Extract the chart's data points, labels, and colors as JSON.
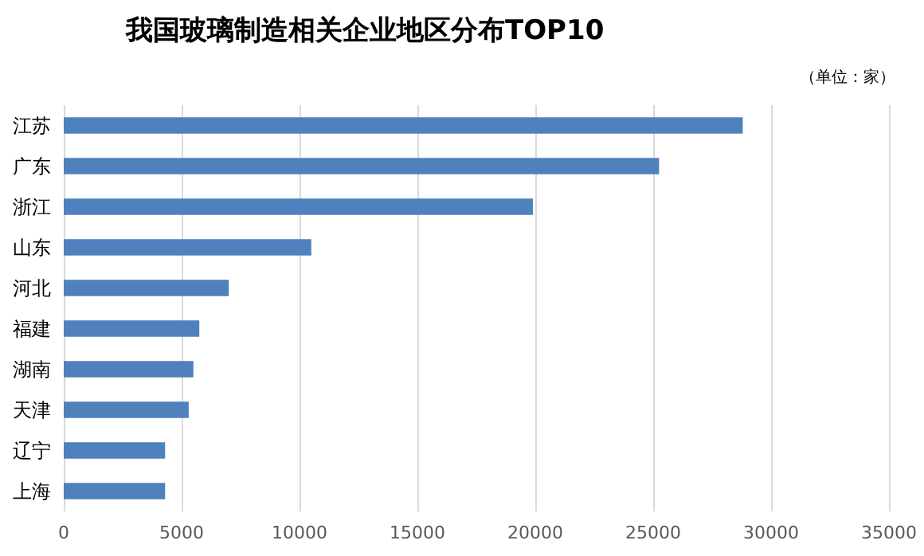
{
  "chart_data": {
    "type": "bar",
    "orientation": "horizontal",
    "title": "我国玻璃制造相关企业地区分布TOP10",
    "annotations": [
      "（单位：家）"
    ],
    "categories": [
      "江苏",
      "广东",
      "浙江",
      "山东",
      "河北",
      "福建",
      "湖南",
      "天津",
      "辽宁",
      "上海"
    ],
    "values": [
      28800,
      25250,
      19900,
      10500,
      7000,
      5750,
      5500,
      5300,
      4300,
      4300
    ],
    "color": "#4f81bd",
    "xlim": [
      0,
      35000
    ],
    "xticks": [
      0,
      5000,
      10000,
      15000,
      20000,
      25000,
      30000,
      35000
    ],
    "grid": "x"
  }
}
